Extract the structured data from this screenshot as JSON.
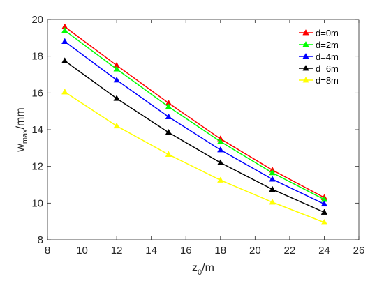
{
  "chart_data": {
    "type": "line",
    "x": [
      9,
      12,
      15,
      18,
      21,
      24
    ],
    "series": [
      {
        "name": "d=0m",
        "color": "#ff0000",
        "values": [
          19.6,
          17.5,
          15.45,
          13.5,
          11.8,
          10.3
        ]
      },
      {
        "name": "d=2m",
        "color": "#00ff00",
        "values": [
          19.4,
          17.3,
          15.25,
          13.35,
          11.65,
          10.2
        ]
      },
      {
        "name": "d=4m",
        "color": "#0000ff",
        "values": [
          18.8,
          16.7,
          14.7,
          12.9,
          11.3,
          9.95
        ]
      },
      {
        "name": "d=6m",
        "color": "#000000",
        "values": [
          17.75,
          15.7,
          13.85,
          12.2,
          10.75,
          9.5
        ]
      },
      {
        "name": "d=8m",
        "color": "#ffff00",
        "values": [
          16.05,
          14.2,
          12.65,
          11.25,
          10.05,
          8.95
        ]
      }
    ],
    "xlabel": {
      "base": "z",
      "sub": "0",
      "rest": "/m"
    },
    "ylabel": {
      "base": "w",
      "sub": "max",
      "rest": "/mm"
    },
    "xlim": [
      8,
      26
    ],
    "ylim": [
      8,
      20
    ],
    "xticks": [
      8,
      10,
      12,
      14,
      16,
      18,
      20,
      22,
      24,
      26
    ],
    "yticks": [
      8,
      10,
      12,
      14,
      16,
      18,
      20
    ],
    "marker": "triangle-up",
    "grid": false,
    "legend_position": "top-right",
    "axis_color": "#262626"
  }
}
